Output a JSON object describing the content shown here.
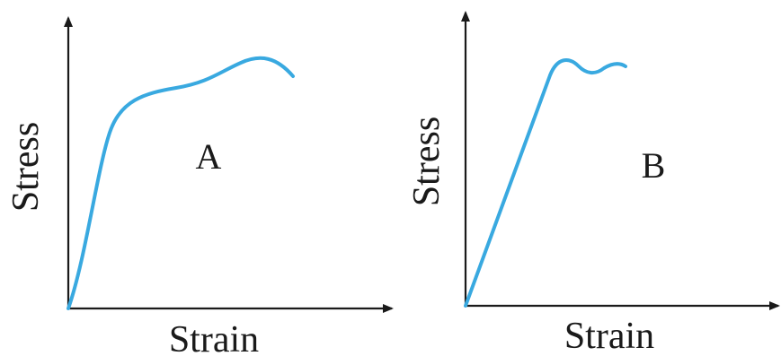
{
  "panels": [
    {
      "id": "A",
      "label": "A",
      "xlabel": "Strain",
      "ylabel": "Stress"
    },
    {
      "id": "B",
      "label": "B",
      "xlabel": "Strain",
      "ylabel": "Stress"
    }
  ],
  "colors": {
    "curve": "#39a9e0",
    "axis": "#1a1a1a",
    "text": "#1a1a1a"
  }
}
